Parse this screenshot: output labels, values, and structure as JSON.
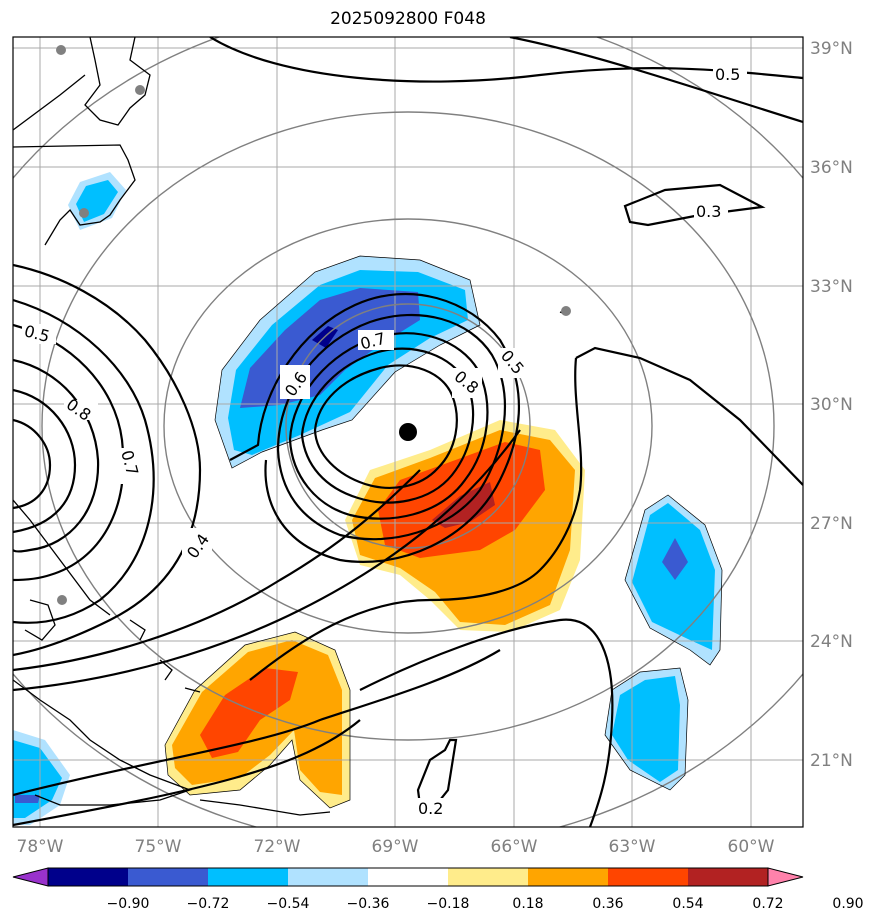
{
  "title": "2025092800 F048",
  "map": {
    "lon_ticks": [
      "78°W",
      "75°W",
      "72°W",
      "69°W",
      "66°W",
      "63°W",
      "60°W"
    ],
    "lat_ticks": [
      "39°N",
      "36°N",
      "33°N",
      "30°N",
      "27°N",
      "24°N",
      "21°N"
    ],
    "contour_labels": [
      "0.5",
      "0.3",
      "0.5",
      "0.8",
      "0.7",
      "0.4",
      "0.6",
      "0.7",
      "0.5",
      "0.8",
      "0.2"
    ],
    "colors": {
      "neg_strong": "#00008b",
      "neg_mid": "#3a5ad1",
      "neg": "#00bfff",
      "neg_light": "#b0e2ff",
      "pos_light": "#ffec8b",
      "pos": "#ffa500",
      "pos_mid": "#ff4500",
      "pos_strong": "#b22222",
      "center_marker": "#000000",
      "station_marker": "#808080",
      "grid": "#a9a9a9"
    }
  },
  "colorbar": {
    "ticks": [
      "−0.90",
      "−0.72",
      "−0.54",
      "−0.36",
      "−0.18",
      "0.18",
      "0.36",
      "0.54",
      "0.72",
      "0.90"
    ],
    "colors": [
      "#9932cc",
      "#00008b",
      "#3a5ad1",
      "#00bfff",
      "#b0e2ff",
      "#ffffff",
      "#ffec8b",
      "#ffa500",
      "#ff4500",
      "#b22222",
      "#ff82ab"
    ]
  }
}
